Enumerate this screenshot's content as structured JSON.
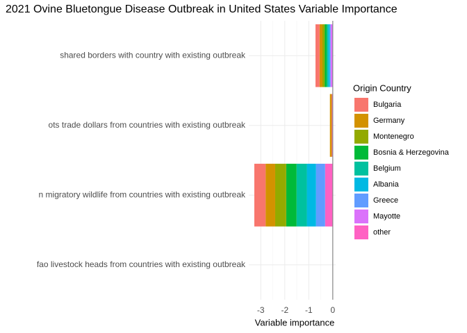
{
  "chart_data": {
    "type": "stacked-barh",
    "title": "2021 Ovine Bluetongue Disease Outbreak in United States Variable Importance",
    "x_label": "Variable importance",
    "legend_title": "Origin Country",
    "legend_position": "right",
    "grid": true,
    "categories": [
      "shared borders with country with existing outbreak",
      "ots trade dollars from countries with existing outbreak",
      "n migratory wildlife from countries with existing outbreak",
      "fao livestock heads from countries with existing outbreak"
    ],
    "xlim": [
      -3.5,
      0.12
    ],
    "xticks": [
      -3,
      -2,
      -1,
      0
    ],
    "series": [
      {
        "name": "Bulgaria",
        "color": "#F8766D",
        "values": [
          -0.17,
          0,
          -0.47,
          0
        ]
      },
      {
        "name": "Germany",
        "color": "#D39200",
        "values": [
          -0.12,
          -0.08,
          -0.4,
          0
        ]
      },
      {
        "name": "Montenegro",
        "color": "#93AA00",
        "values": [
          -0.09,
          0,
          -0.46,
          0
        ]
      },
      {
        "name": "Bosnia & Herzegovina",
        "color": "#00BA38",
        "values": [
          -0.09,
          0,
          -0.43,
          0
        ]
      },
      {
        "name": "Belgium",
        "color": "#00C19F",
        "values": [
          -0.06,
          0,
          -0.43,
          0
        ]
      },
      {
        "name": "Albania",
        "color": "#00B9E3",
        "values": [
          -0.06,
          0,
          -0.38,
          0
        ]
      },
      {
        "name": "Greece",
        "color": "#619CFF",
        "values": [
          -0.04,
          0,
          -0.38,
          0
        ]
      },
      {
        "name": "Mayotte",
        "color": "#DB72FB",
        "values": [
          -0.09,
          0,
          0,
          0
        ]
      },
      {
        "name": "other",
        "color": "#FF61C3",
        "values": [
          0,
          -0.04,
          -0.32,
          0
        ]
      }
    ]
  }
}
